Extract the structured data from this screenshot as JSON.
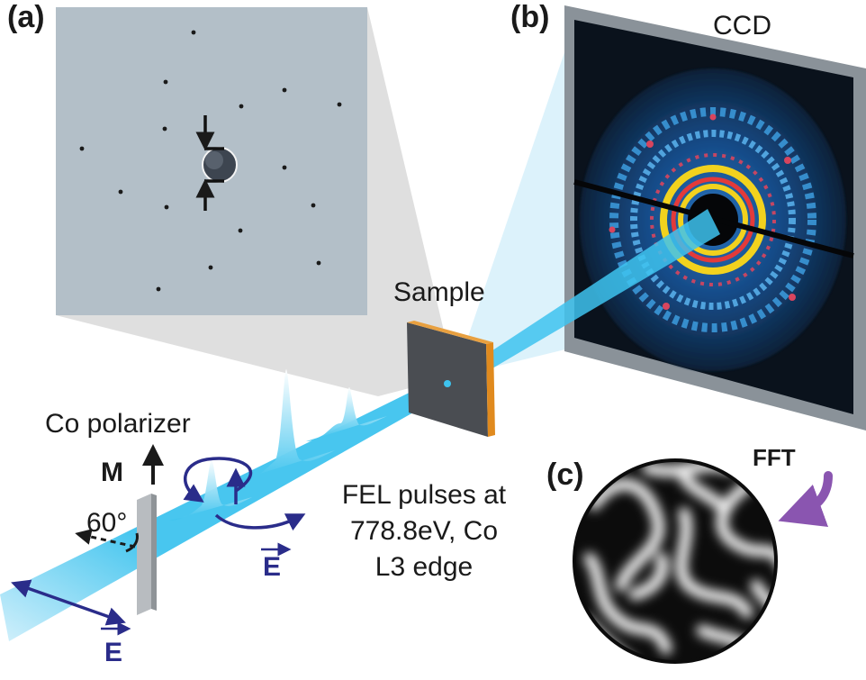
{
  "panels": {
    "a": "(a)",
    "b": "(b)",
    "c": "(c)"
  },
  "labels": {
    "ccd": "CCD",
    "sample": "Sample",
    "co_polarizer": "Co polarizer",
    "magnetization": "M",
    "angle": "60°",
    "e_field_1": "E",
    "e_field_2": "E",
    "fft": "FFT",
    "fel_line1": "FEL pulses at",
    "fel_line2": "778.8eV, Co",
    "fel_line3": "L3 edge"
  },
  "colors": {
    "beam": "#3ec3ee",
    "field_arrow": "#2a2c8a",
    "fft_arrow": "#8a55b0",
    "sample_edge": "#e08a1e",
    "ccd_frame": "#8a9299",
    "ring_yellow": "#f2d21e",
    "ring_red": "#d8455e"
  }
}
